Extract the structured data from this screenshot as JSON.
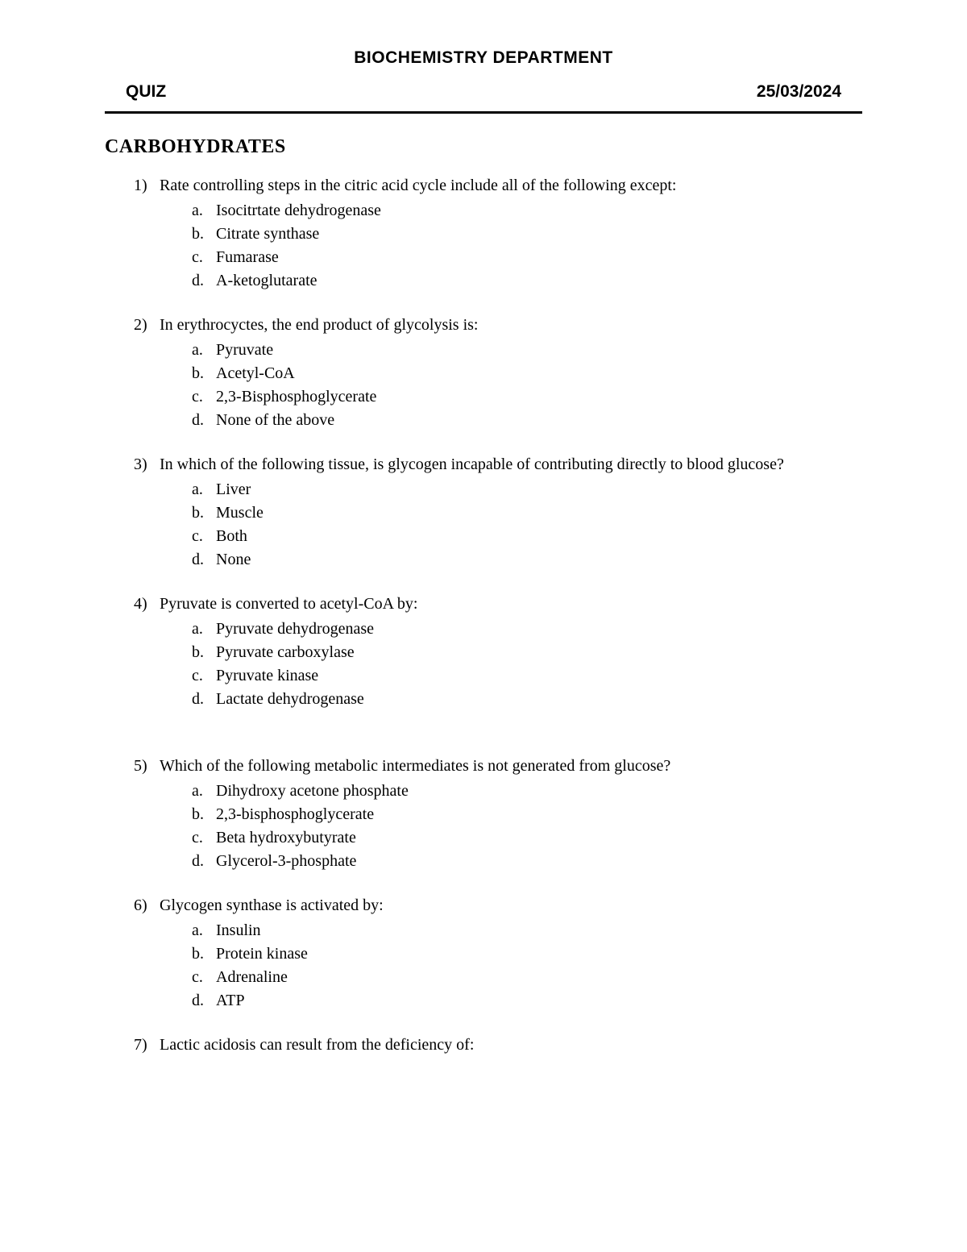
{
  "header": {
    "department": "BIOCHEMISTRY DEPARTMENT",
    "quiz_label": "QUIZ",
    "date": "25/03/2024"
  },
  "section_title": "CARBOHYDRATES",
  "questions": [
    {
      "num": "1)",
      "text": "Rate controlling steps in the citric acid cycle include all of the following except:",
      "options": [
        {
          "letter": "a.",
          "text": "Isocitrtate dehydrogenase"
        },
        {
          "letter": "b.",
          "text": "Citrate synthase"
        },
        {
          "letter": "c.",
          "text": "Fumarase"
        },
        {
          "letter": "d.",
          "text": "A-ketoglutarate"
        }
      ]
    },
    {
      "num": "2)",
      "text": "In erythrocyctes, the end product of glycolysis is:",
      "options": [
        {
          "letter": "a.",
          "text": "Pyruvate"
        },
        {
          "letter": "b.",
          "text": "Acetyl-CoA"
        },
        {
          "letter": "c.",
          "text": "2,3-Bisphosphoglycerate"
        },
        {
          "letter": "d.",
          "text": "None of the above"
        }
      ]
    },
    {
      "num": "3)",
      "text": "In which of the following tissue, is glycogen incapable of contributing directly to blood glucose?",
      "options": [
        {
          "letter": "a.",
          "text": "Liver"
        },
        {
          "letter": "b.",
          "text": "Muscle"
        },
        {
          "letter": "c.",
          "text": "Both"
        },
        {
          "letter": "d.",
          "text": "None"
        }
      ]
    },
    {
      "num": "4)",
      "text": "Pyruvate is converted to acetyl-CoA by:",
      "options": [
        {
          "letter": "a.",
          "text": "Pyruvate dehydrogenase"
        },
        {
          "letter": "b.",
          "text": "Pyruvate carboxylase"
        },
        {
          "letter": "c.",
          "text": "Pyruvate kinase"
        },
        {
          "letter": "d.",
          "text": "Lactate dehydrogenase"
        }
      ]
    },
    {
      "num": "5)",
      "text": "Which of the following metabolic intermediates is not generated from glucose?",
      "extra_gap": true,
      "options": [
        {
          "letter": "a.",
          "text": "Dihydroxy acetone phosphate"
        },
        {
          "letter": "b.",
          "text": "2,3-bisphosphoglycerate"
        },
        {
          "letter": "c.",
          "text": "Beta hydroxybutyrate"
        },
        {
          "letter": "d.",
          "text": "Glycerol-3-phosphate"
        }
      ]
    },
    {
      "num": "6)",
      "text": "Glycogen synthase is activated by:",
      "options": [
        {
          "letter": "a.",
          "text": "Insulin"
        },
        {
          "letter": "b.",
          "text": "Protein kinase"
        },
        {
          "letter": "c.",
          "text": "Adrenaline"
        },
        {
          "letter": "d.",
          "text": "ATP"
        }
      ]
    },
    {
      "num": "7)",
      "text": "Lactic acidosis can result from the deficiency of:",
      "options": []
    }
  ]
}
